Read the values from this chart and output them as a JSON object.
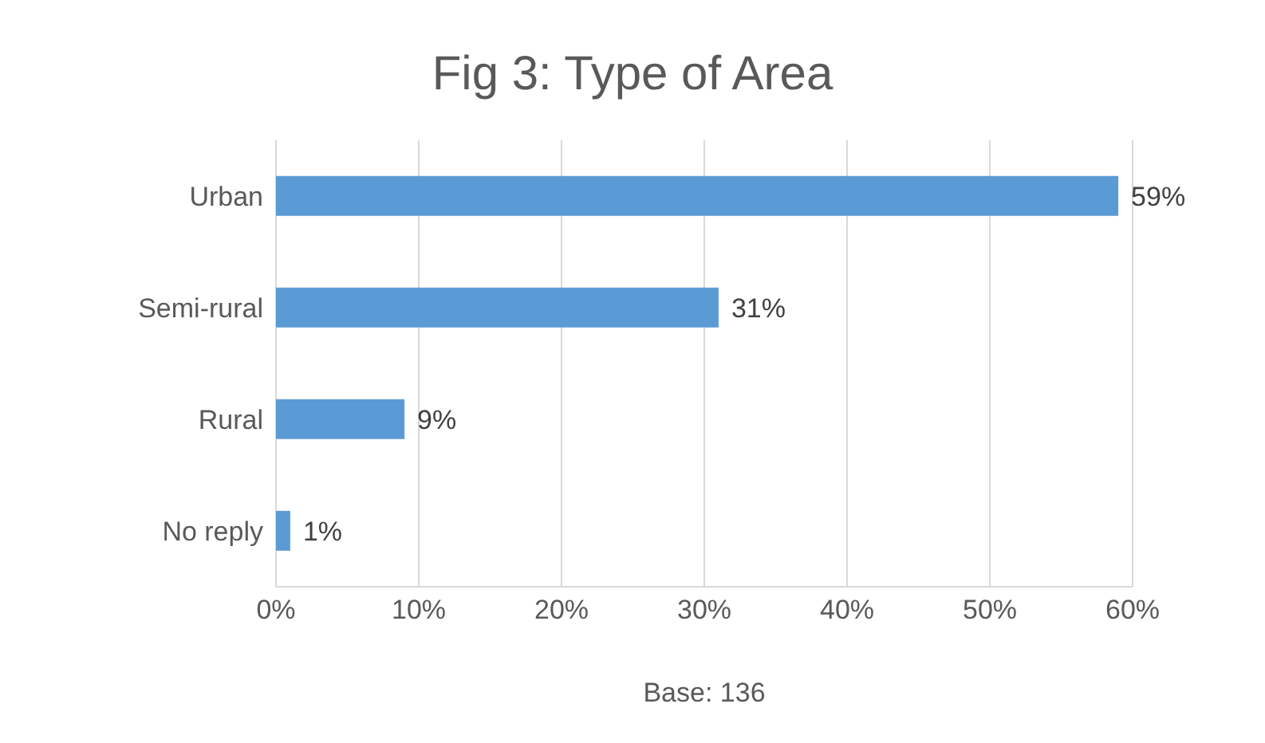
{
  "chart_data": {
    "type": "bar",
    "orientation": "horizontal",
    "title": "Fig 3: Type of Area",
    "xlabel": "Base: 136",
    "categories": [
      "Urban",
      "Semi-rural",
      "Rural",
      "No reply"
    ],
    "values": [
      59,
      31,
      9,
      1
    ],
    "color": "#5b9bd5",
    "value_labels": [
      "59%",
      "31%",
      "9%",
      "1%"
    ],
    "xlim": [
      0,
      60
    ],
    "xticks": [
      {
        "value": 0,
        "label": "0%"
      },
      {
        "value": 10,
        "label": "10%"
      },
      {
        "value": 20,
        "label": "20%"
      },
      {
        "value": 30,
        "label": "30%"
      },
      {
        "value": 40,
        "label": "40%"
      },
      {
        "value": 50,
        "label": "50%"
      },
      {
        "value": 60,
        "label": "60%"
      }
    ],
    "grid": "x"
  }
}
